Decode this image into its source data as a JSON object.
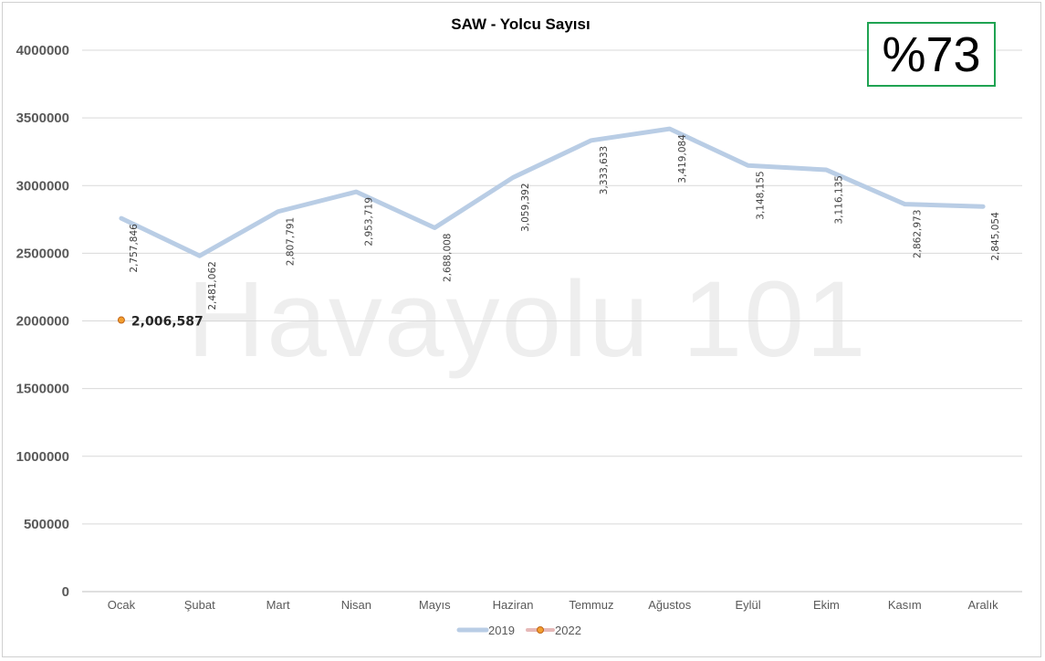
{
  "badge": {
    "text": "%73"
  },
  "watermark": {
    "text": "Havayolu 101"
  },
  "chart_data": {
    "type": "line",
    "title": "SAW - Yolcu Sayısı",
    "xlabel": "",
    "ylabel": "",
    "categories": [
      "Ocak",
      "Şubat",
      "Mart",
      "Nisan",
      "Mayıs",
      "Haziran",
      "Temmuz",
      "Ağustos",
      "Eylül",
      "Ekim",
      "Kasım",
      "Aralık"
    ],
    "ylim": [
      0,
      4000000
    ],
    "yticks": [
      "0",
      "500000",
      "1000000",
      "1500000",
      "2000000",
      "2500000",
      "3000000",
      "3500000",
      "4000000"
    ],
    "grid": true,
    "legend_position": "bottom",
    "series": [
      {
        "name": "2019",
        "color": "#b9cde5",
        "values": [
          2757846,
          2481062,
          2807791,
          2953719,
          2688008,
          3059392,
          3333633,
          3419084,
          3148155,
          3116135,
          2862973,
          2845054
        ],
        "labels": [
          "2,757,846",
          "2,481,062",
          "2,807,791",
          "2,953,719",
          "2,688,008",
          "3,059,392",
          "3,333,633",
          "3,419,084",
          "3,148,155",
          "3,116,135",
          "2,862,973",
          "2,845,054"
        ]
      },
      {
        "name": "2022",
        "color": "#f29e2e",
        "line_color": "#e6b9b8",
        "values": [
          2006587,
          null,
          null,
          null,
          null,
          null,
          null,
          null,
          null,
          null,
          null,
          null
        ],
        "labels": [
          "2,006,587",
          "",
          "",
          "",
          "",
          "",
          "",
          "",
          "",
          "",
          "",
          ""
        ]
      }
    ]
  }
}
